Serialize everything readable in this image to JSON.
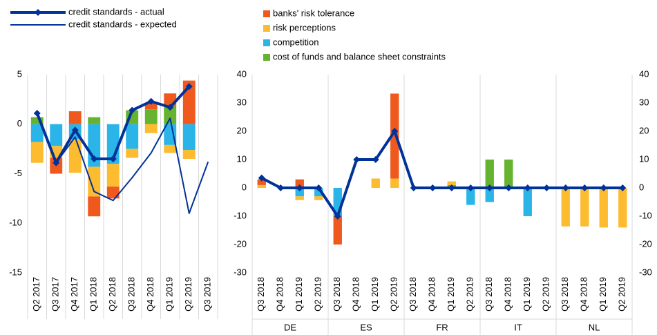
{
  "chart_data": [
    {
      "type": "bar",
      "stacked": true,
      "categories": [
        "Q2 2017",
        "Q3 2017",
        "Q4 2017",
        "Q1 2018",
        "Q2 2018",
        "Q3 2018",
        "Q4 2018",
        "Q1 2019",
        "Q2 2019",
        "Q3 2019"
      ],
      "ylim": [
        -15,
        5
      ],
      "yticks": [
        -15,
        -10,
        -5,
        0,
        5
      ],
      "series": [
        {
          "name": "banks' risk tolerance",
          "type": "bar",
          "color": "#f0591e",
          "values": [
            null,
            -1.6,
            1.3,
            -2.0,
            -1.2,
            null,
            0.6,
            1.3,
            4.4,
            null
          ]
        },
        {
          "name": "risk perceptions",
          "type": "bar",
          "color": "#fdbb2f",
          "values": [
            -2.1,
            -1.2,
            -3.4,
            -3.0,
            -2.3,
            -0.9,
            -0.9,
            -0.8,
            -0.9,
            null
          ]
        },
        {
          "name": "competition",
          "type": "bar",
          "color": "#2ab4e8",
          "values": [
            -1.8,
            -2.2,
            -1.5,
            -4.3,
            -4.0,
            -2.5,
            null,
            -2.1,
            -2.6,
            null
          ]
        },
        {
          "name": "cost of funds and balance sheet constraints",
          "type": "bar",
          "color": "#65b32e",
          "values": [
            0.7,
            null,
            null,
            0.7,
            null,
            1.4,
            1.5,
            1.8,
            null,
            null
          ]
        },
        {
          "name": "credit standards - actual",
          "type": "line",
          "width": 4,
          "markers": true,
          "color": "#003299",
          "values": [
            1.1,
            -3.9,
            -0.6,
            -3.5,
            -3.5,
            1.4,
            2.3,
            1.7,
            3.8,
            null
          ]
        },
        {
          "name": "credit standards - expected",
          "type": "line",
          "width": 2,
          "markers": false,
          "color": "#003299",
          "values": [
            null,
            -3.9,
            -1.3,
            -6.8,
            -7.7,
            -5.4,
            -2.9,
            0.6,
            -9,
            -3.8
          ]
        }
      ]
    },
    {
      "type": "bar",
      "stacked": true,
      "categories": [
        "Q3 2018",
        "Q4 2018",
        "Q1 2019",
        "Q2 2019",
        "Q3 2018",
        "Q4 2018",
        "Q1 2019",
        "Q2 2019",
        "Q3 2018",
        "Q4 2018",
        "Q1 2019",
        "Q2 2019",
        "Q3 2018",
        "Q4 2018",
        "Q1 2019",
        "Q2 2019",
        "Q3 2018",
        "Q4 2018",
        "Q1 2019",
        "Q2 2019"
      ],
      "groups": [
        "DE",
        "ES",
        "FR",
        "IT",
        "NL"
      ],
      "ylim": [
        -30,
        40
      ],
      "yticks": [
        -30,
        -20,
        -10,
        0,
        10,
        20,
        30,
        40
      ],
      "y2lim": [
        -30,
        40
      ],
      "y2ticks": [
        -30,
        -20,
        -10,
        0,
        10,
        20,
        30,
        40
      ],
      "series": [
        {
          "type": "bar",
          "color": "#f0591e",
          "values": [
            2,
            null,
            3,
            null,
            -10,
            null,
            null,
            30,
            null,
            null,
            null,
            null,
            null,
            null,
            null,
            null,
            null,
            null,
            null,
            null
          ]
        },
        {
          "type": "bar",
          "color": "#fdbb2f",
          "values": [
            1,
            null,
            -1.3,
            -1.3,
            null,
            null,
            3.3,
            3.3,
            null,
            null,
            1.3,
            null,
            null,
            null,
            null,
            null,
            -13.6,
            -13.6,
            -14,
            -14
          ]
        },
        {
          "type": "bar",
          "color": "#2ab4e8",
          "values": [
            null,
            null,
            -3,
            -3,
            -10,
            null,
            null,
            null,
            null,
            null,
            null,
            -6,
            -5,
            null,
            -10,
            null,
            null,
            null,
            null,
            null
          ]
        },
        {
          "type": "bar",
          "color": "#65b32e",
          "values": [
            null,
            null,
            null,
            null,
            null,
            null,
            null,
            null,
            null,
            null,
            1,
            null,
            10,
            10,
            null,
            null,
            null,
            null,
            null,
            null
          ]
        },
        {
          "type": "line",
          "width": 4,
          "markers": true,
          "color": "#003299",
          "values": [
            3.5,
            0,
            0,
            0,
            -10,
            10,
            10,
            20,
            0,
            0,
            0,
            0,
            0,
            0,
            0,
            0,
            0,
            0,
            0,
            0
          ]
        }
      ]
    }
  ]
}
